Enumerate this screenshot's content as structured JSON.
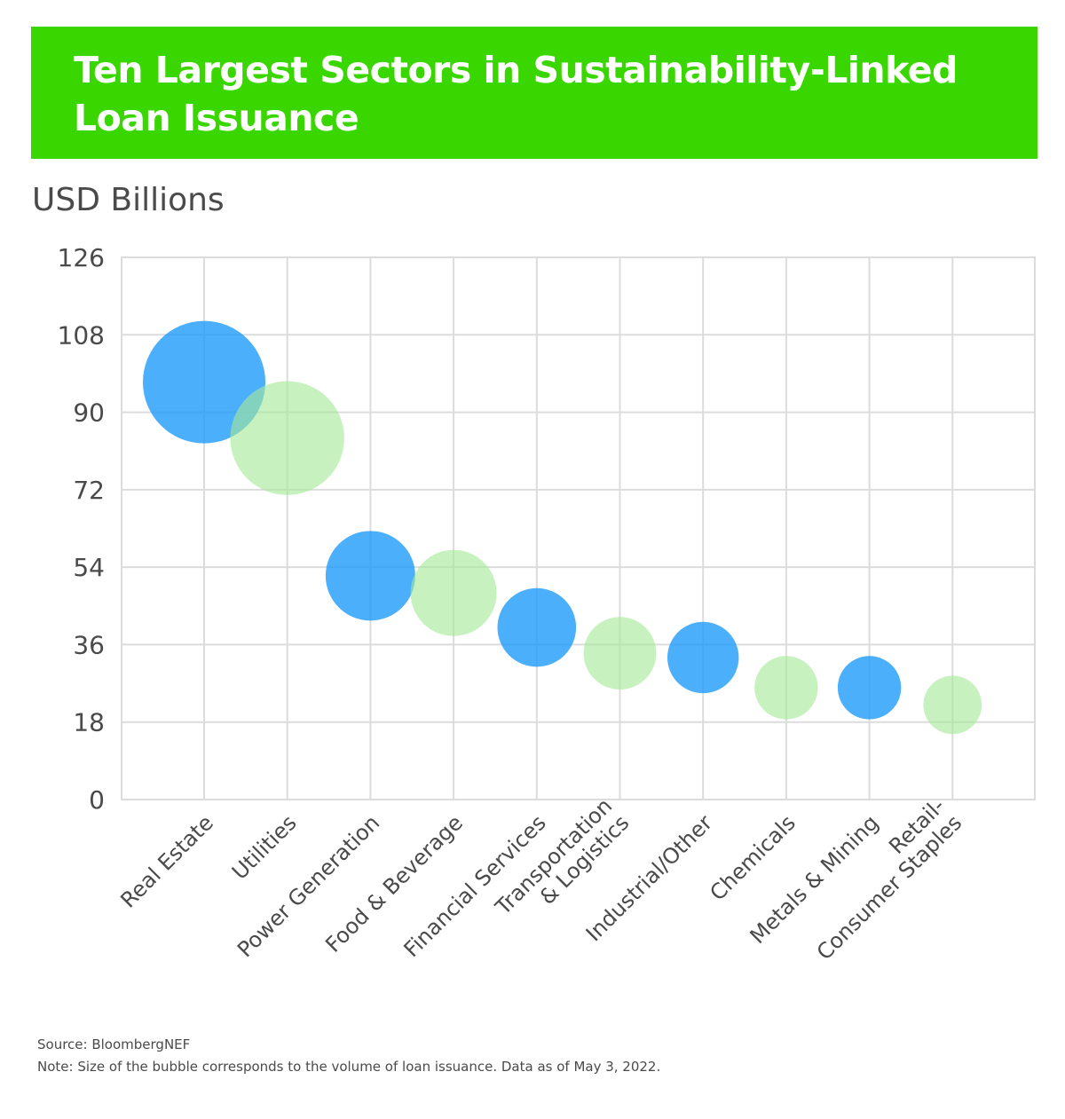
{
  "header": {
    "title": "Ten Largest Sectors in Sustainability-Linked Loan Issuance"
  },
  "footer": {
    "source": "Source: BloombergNEF",
    "note": "Note: Size of the bubble corresponds to the volume of loan issuance. Data as of May 3, 2022."
  },
  "chart_data": {
    "type": "scatter",
    "subtype": "bubble",
    "title": "Ten Largest Sectors in Sustainability-Linked Loan Issuance",
    "ylabel": "USD Billions",
    "xlabel": "",
    "ylim": [
      0,
      126
    ],
    "yticks": [
      0,
      18,
      36,
      54,
      72,
      90,
      108,
      126
    ],
    "grid": true,
    "colors": {
      "blue": "#1e9bfa",
      "green": "#a6e99a",
      "overlap": "#0072e6"
    },
    "categories": [
      "Real Estate",
      "Utilities",
      "Power Generation",
      "Food & Beverage",
      "Financial Services",
      "Transportation & Logistics",
      "Industrial/Other",
      "Chemicals",
      "Metals & Mining",
      "Retail-Consumer Staples"
    ],
    "category_lines": [
      [
        "Real Estate"
      ],
      [
        "Utilities"
      ],
      [
        "Power Generation"
      ],
      [
        "Food & Beverage"
      ],
      [
        "Financial Services"
      ],
      [
        "Transportation",
        "& Logistics"
      ],
      [
        "Industrial/Other"
      ],
      [
        "Chemicals"
      ],
      [
        "Metals & Mining"
      ],
      [
        "Retail-",
        "Consumer Staples"
      ]
    ],
    "values": [
      97,
      84,
      52,
      48,
      40,
      34,
      33,
      26,
      26,
      22
    ],
    "series_color": [
      "blue",
      "green",
      "blue",
      "green",
      "blue",
      "green",
      "blue",
      "green",
      "blue",
      "green"
    ]
  }
}
